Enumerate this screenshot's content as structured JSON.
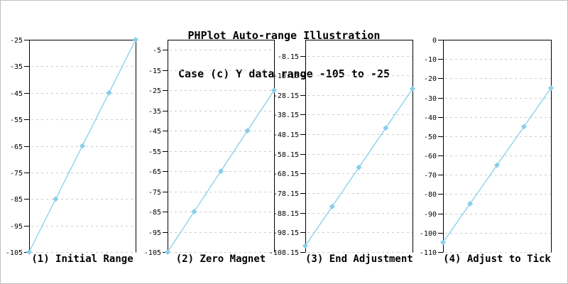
{
  "title": {
    "line1": "PHPlot Auto-range Illustration",
    "line2": "Case (c) Y data range -105 to -25"
  },
  "colors": {
    "line": "#87CEEB",
    "marker": "#87CEEB",
    "grid": "#CCCCCC",
    "axis": "#000000",
    "text": "#000000",
    "frame_border": "#BFBFBF",
    "background": "#FFFFFF"
  },
  "chart_data": [
    {
      "type": "line",
      "caption": "(1) Initial Range",
      "x": [
        0,
        1,
        2,
        3,
        4
      ],
      "y": [
        -105,
        -85,
        -65,
        -45,
        -25
      ],
      "ylim": [
        -105,
        -25
      ],
      "yticks": [
        -25,
        -35,
        -45,
        -55,
        -65,
        -75,
        -85,
        -95,
        -105
      ],
      "grid": true,
      "marker": "diamond",
      "legend_position": "none"
    },
    {
      "type": "line",
      "caption": "(2) Zero Magnet",
      "x": [
        0,
        1,
        2,
        3,
        4
      ],
      "y": [
        -105,
        -85,
        -65,
        -45,
        -25
      ],
      "ylim": [
        -105,
        0
      ],
      "yticks": [
        -5,
        -15,
        -25,
        -35,
        -45,
        -55,
        -65,
        -75,
        -85,
        -95,
        -105
      ],
      "grid": true,
      "marker": "diamond",
      "legend_position": "none"
    },
    {
      "type": "line",
      "caption": "(3) End Adjustment",
      "x": [
        0,
        1,
        2,
        3,
        4
      ],
      "y": [
        -105,
        -85,
        -65,
        -45,
        -25
      ],
      "ylim": [
        -108.15,
        0
      ],
      "yticks": [
        -8.15,
        -18.15,
        -28.15,
        -38.15,
        -48.15,
        -58.15,
        -68.15,
        -78.15,
        -88.15,
        -98.15,
        -108.15
      ],
      "grid": true,
      "marker": "diamond",
      "legend_position": "none"
    },
    {
      "type": "line",
      "caption": "(4) Adjust to Tick",
      "x": [
        0,
        1,
        2,
        3,
        4
      ],
      "y": [
        -105,
        -85,
        -65,
        -45,
        -25
      ],
      "ylim": [
        -110,
        0
      ],
      "yticks": [
        0,
        -10,
        -20,
        -30,
        -40,
        -50,
        -60,
        -70,
        -80,
        -90,
        -100,
        -110
      ],
      "grid": true,
      "marker": "diamond",
      "legend_position": "none"
    }
  ]
}
